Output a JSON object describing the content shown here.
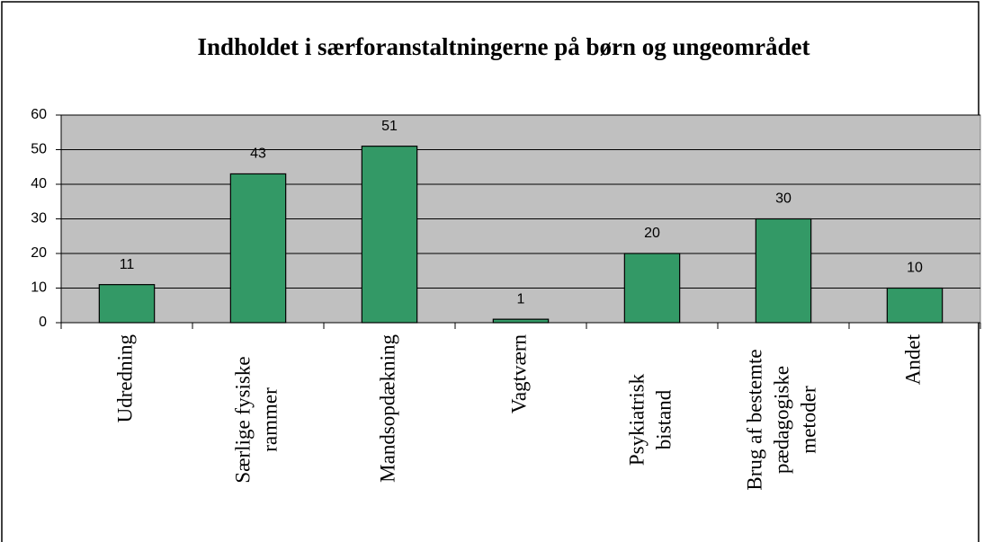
{
  "chart_data": {
    "type": "bar",
    "title": "Indholdet i særforanstaltningerne på børn og ungeområdet",
    "categories": [
      [
        "Udredning"
      ],
      [
        "Særlige fysiske",
        "rammer"
      ],
      [
        "Mandsopdækning"
      ],
      [
        "Vagtværn"
      ],
      [
        "Psykiatrisk",
        "bistand"
      ],
      [
        "Brug af bestemte",
        "pædagogiske",
        "metoder"
      ],
      [
        "Andet"
      ]
    ],
    "values": [
      11,
      43,
      51,
      1,
      20,
      30,
      10
    ],
    "color": "#339966",
    "ylim": [
      0,
      60
    ],
    "yticks": [
      0,
      10,
      20,
      30,
      40,
      50,
      60
    ],
    "grid": true
  }
}
